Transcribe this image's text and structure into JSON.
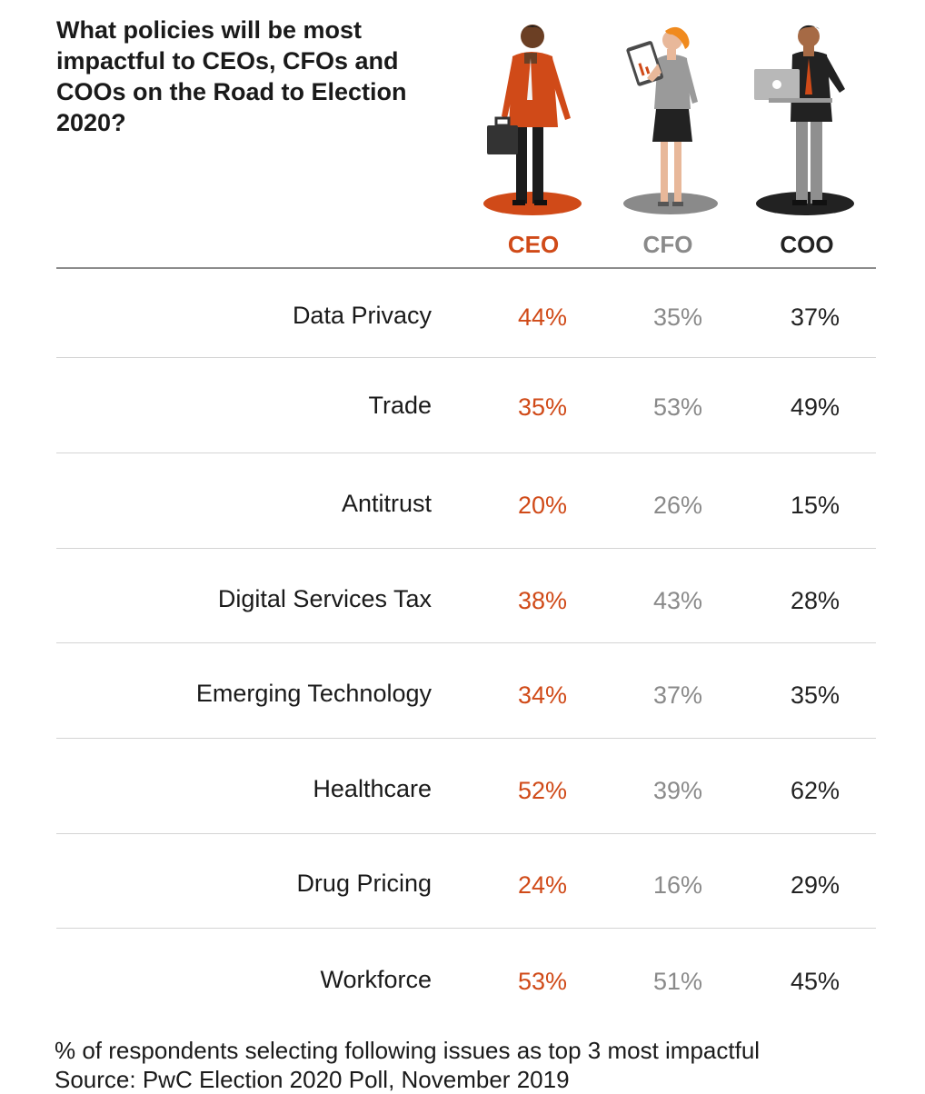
{
  "title": "What policies will be most impactful to CEOs, CFOs and COOs on the Road to Election 2020?",
  "colors": {
    "ceo": "#d04a18",
    "cfo": "#8a8a8a",
    "coo": "#222222"
  },
  "icons": [
    "ceo-figure-icon",
    "cfo-figure-icon",
    "coo-figure-icon"
  ],
  "chart_data": {
    "type": "table",
    "title": "What policies will be most impactful to CEOs, CFOs and COOs on the Road to Election 2020?",
    "columns": [
      "CEO",
      "CFO",
      "COO"
    ],
    "rows": [
      {
        "label": "Data Privacy",
        "values": [
          "44%",
          "35%",
          "37%"
        ]
      },
      {
        "label": "Trade",
        "values": [
          "35%",
          "53%",
          "49%"
        ]
      },
      {
        "label": "Antitrust",
        "values": [
          "20%",
          "26%",
          "15%"
        ]
      },
      {
        "label": "Digital Services Tax",
        "values": [
          "38%",
          "43%",
          "28%"
        ]
      },
      {
        "label": "Emerging Technology",
        "values": [
          "34%",
          "37%",
          "35%"
        ]
      },
      {
        "label": "Healthcare",
        "values": [
          "52%",
          "39%",
          "62%"
        ]
      },
      {
        "label": "Drug Pricing",
        "values": [
          "24%",
          "16%",
          "29%"
        ]
      },
      {
        "label": "Workforce",
        "values": [
          "53%",
          "51%",
          "45%"
        ]
      }
    ]
  },
  "footnote": {
    "line1": "% of respondents selecting following issues as top 3 most impactful",
    "line2": "Source: PwC Election 2020 Poll, November 2019"
  }
}
